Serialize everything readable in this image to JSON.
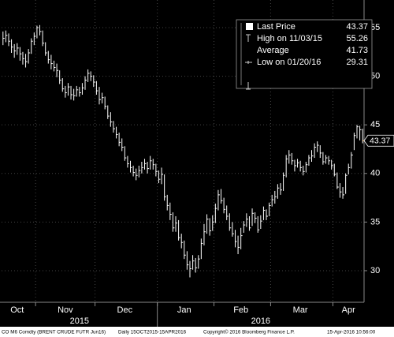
{
  "chart_data": {
    "type": "ohlc",
    "categories": [
      null,
      null,
      null,
      null,
      null,
      "Oct",
      null,
      null,
      null,
      null,
      null,
      null,
      null,
      null,
      null,
      null,
      null,
      null,
      null,
      null,
      null,
      null,
      "Nov",
      null,
      null,
      null,
      null,
      null,
      null,
      null,
      null,
      null,
      null,
      null,
      null,
      null,
      null,
      null,
      null,
      null,
      null,
      null,
      null,
      "Dec",
      null,
      null,
      null,
      null,
      null,
      null,
      null,
      null,
      null,
      null,
      null,
      null,
      null,
      null,
      null,
      null,
      null,
      null,
      null,
      null,
      "Jan",
      null,
      null,
      null,
      null,
      null,
      null,
      null,
      null,
      null,
      null,
      null,
      null,
      null,
      null,
      null,
      null,
      null,
      null,
      null,
      "Feb",
      null,
      null,
      null,
      null,
      null,
      null,
      null,
      null,
      null,
      null,
      null,
      null,
      null,
      null,
      null,
      null,
      null,
      null,
      null,
      null,
      "Mar",
      null,
      null,
      null,
      null,
      null,
      null,
      null,
      null,
      null,
      null,
      null,
      null,
      null,
      null,
      null,
      null,
      "Apr",
      null,
      null,
      null,
      null,
      null
    ],
    "x_groups": [
      "2015",
      "2016"
    ],
    "series": [
      {
        "name": "Last Price",
        "color": "#ffffff",
        "high": [
          54.6,
          54.7,
          54.4,
          53.8,
          53.3,
          53.4,
          53.0,
          52.5,
          52.3,
          52.8,
          53.9,
          54.5,
          55.2,
          55.26,
          54.7,
          53.5,
          52.6,
          52.2,
          51.6,
          51.3,
          50.6,
          49.8,
          49.0,
          49.3,
          49.0,
          48.7,
          49.0,
          48.9,
          49.3,
          50.0,
          50.7,
          50.5,
          50.1,
          49.5,
          48.9,
          48.3,
          47.9,
          47.0,
          46.3,
          45.4,
          44.8,
          44.2,
          43.6,
          42.8,
          41.8,
          41.3,
          40.8,
          40.5,
          40.8,
          41.2,
          41.5,
          41.2,
          41.8,
          41.5,
          41.0,
          40.3,
          40.6,
          39.9,
          37.8,
          37.0,
          36.0,
          35.6,
          35.2,
          33.8,
          33.1,
          32.0,
          31.0,
          31.6,
          31.3,
          31.6,
          33.3,
          34.8,
          35.8,
          35.4,
          35.7,
          36.9,
          38.3,
          38.4,
          37.5,
          36.7,
          35.9,
          35.0,
          34.2,
          33.6,
          34.4,
          35.1,
          35.9,
          35.6,
          36.4,
          36.0,
          35.6,
          35.7,
          36.6,
          36.3,
          37.0,
          37.8,
          38.2,
          38.9,
          39.0,
          40.1,
          41.9,
          42.4,
          42.1,
          41.4,
          41.5,
          41.3,
          40.8,
          41.2,
          41.9,
          42.4,
          43.1,
          43.3,
          42.9,
          42.2,
          41.9,
          41.8,
          41.4,
          41.0,
          40.1,
          39.0,
          38.6,
          40.0,
          41.0,
          42.2,
          44.2,
          45.0,
          44.9,
          44.6
        ],
        "low": [
          53.2,
          53.5,
          53.1,
          52.4,
          51.9,
          52.2,
          51.6,
          51.2,
          50.9,
          51.3,
          52.3,
          53.2,
          53.9,
          54.2,
          53.1,
          52.1,
          51.3,
          50.7,
          50.5,
          49.9,
          49.2,
          48.4,
          47.8,
          48.0,
          47.6,
          47.5,
          47.9,
          47.9,
          48.1,
          48.6,
          49.4,
          49.5,
          48.9,
          48.1,
          47.1,
          47.2,
          46.6,
          45.6,
          44.8,
          44.2,
          43.6,
          42.8,
          42.3,
          41.3,
          40.6,
          40.1,
          39.7,
          39.3,
          39.6,
          40.0,
          40.4,
          40.0,
          40.4,
          40.4,
          39.7,
          39.0,
          38.9,
          37.2,
          36.2,
          35.2,
          34.0,
          34.0,
          33.1,
          32.3,
          31.2,
          30.1,
          29.31,
          30.1,
          29.8,
          30.2,
          31.2,
          32.6,
          33.8,
          33.6,
          34.1,
          34.9,
          36.2,
          36.9,
          35.9,
          35.2,
          34.1,
          33.5,
          32.4,
          31.7,
          32.2,
          33.9,
          34.5,
          34.1,
          34.6,
          34.9,
          33.9,
          34.3,
          35.2,
          35.2,
          35.6,
          36.6,
          36.9,
          37.4,
          37.8,
          38.2,
          39.6,
          41.0,
          40.9,
          40.2,
          40.6,
          40.2,
          39.8,
          40.1,
          40.8,
          41.2,
          41.6,
          42.2,
          41.6,
          40.9,
          41.0,
          40.9,
          40.4,
          39.7,
          38.4,
          37.5,
          37.4,
          37.9,
          39.9,
          40.5,
          42.4,
          43.6,
          43.4,
          43.1
        ],
        "close": [
          53.9,
          54.2,
          53.6,
          53.0,
          52.6,
          52.9,
          52.3,
          51.8,
          51.5,
          52.4,
          53.6,
          54.1,
          55.0,
          54.6,
          53.4,
          52.4,
          51.7,
          51.3,
          50.9,
          50.6,
          49.6,
          48.7,
          48.3,
          48.9,
          48.1,
          48.0,
          48.6,
          48.3,
          48.8,
          49.6,
          50.3,
          50.0,
          49.4,
          48.5,
          47.6,
          47.8,
          46.9,
          45.9,
          45.3,
          44.6,
          44.0,
          43.2,
          42.7,
          41.6,
          41.0,
          40.6,
          40.1,
          39.8,
          40.3,
          40.6,
          41.0,
          40.5,
          41.3,
          40.9,
          40.2,
          39.4,
          39.9,
          37.6,
          36.7,
          35.8,
          34.4,
          34.9,
          33.4,
          32.9,
          31.6,
          30.6,
          30.2,
          31.0,
          30.3,
          31.2,
          32.8,
          34.0,
          35.3,
          34.1,
          35.0,
          36.4,
          37.8,
          37.2,
          36.3,
          35.6,
          34.4,
          33.8,
          33.0,
          32.4,
          33.6,
          34.7,
          35.3,
          34.4,
          35.9,
          35.4,
          34.2,
          35.1,
          36.2,
          35.6,
          36.7,
          37.3,
          37.6,
          38.5,
          38.3,
          39.8,
          41.5,
          41.9,
          41.3,
          40.8,
          41.1,
          40.6,
          40.2,
          40.9,
          41.6,
          41.8,
          42.7,
          42.9,
          42.1,
          41.2,
          41.6,
          41.3,
          40.8,
          39.9,
          38.6,
          38.1,
          37.8,
          39.8,
          40.6,
          41.9,
          43.9,
          44.8,
          44.5,
          43.37
        ]
      }
    ],
    "legend_stats": [
      {
        "label": "High on 11/03/15",
        "value": 55.26
      },
      {
        "label": "Average",
        "value": 41.73
      },
      {
        "label": "Low on 01/20/16",
        "value": 29.31
      }
    ],
    "ylim": [
      26.75,
      57.84
    ],
    "yticks": [
      30,
      35,
      40,
      45,
      50,
      55
    ],
    "grid": true,
    "footer": [
      "CO M6 Comdty (BRENT CRUDE FUTR Jun16)",
      "Daily 15OCT2015-15APR2016",
      "Copyright© 2016 Bloomberg Finance L.P.",
      "15-Apr-2016 10:56:00"
    ]
  }
}
